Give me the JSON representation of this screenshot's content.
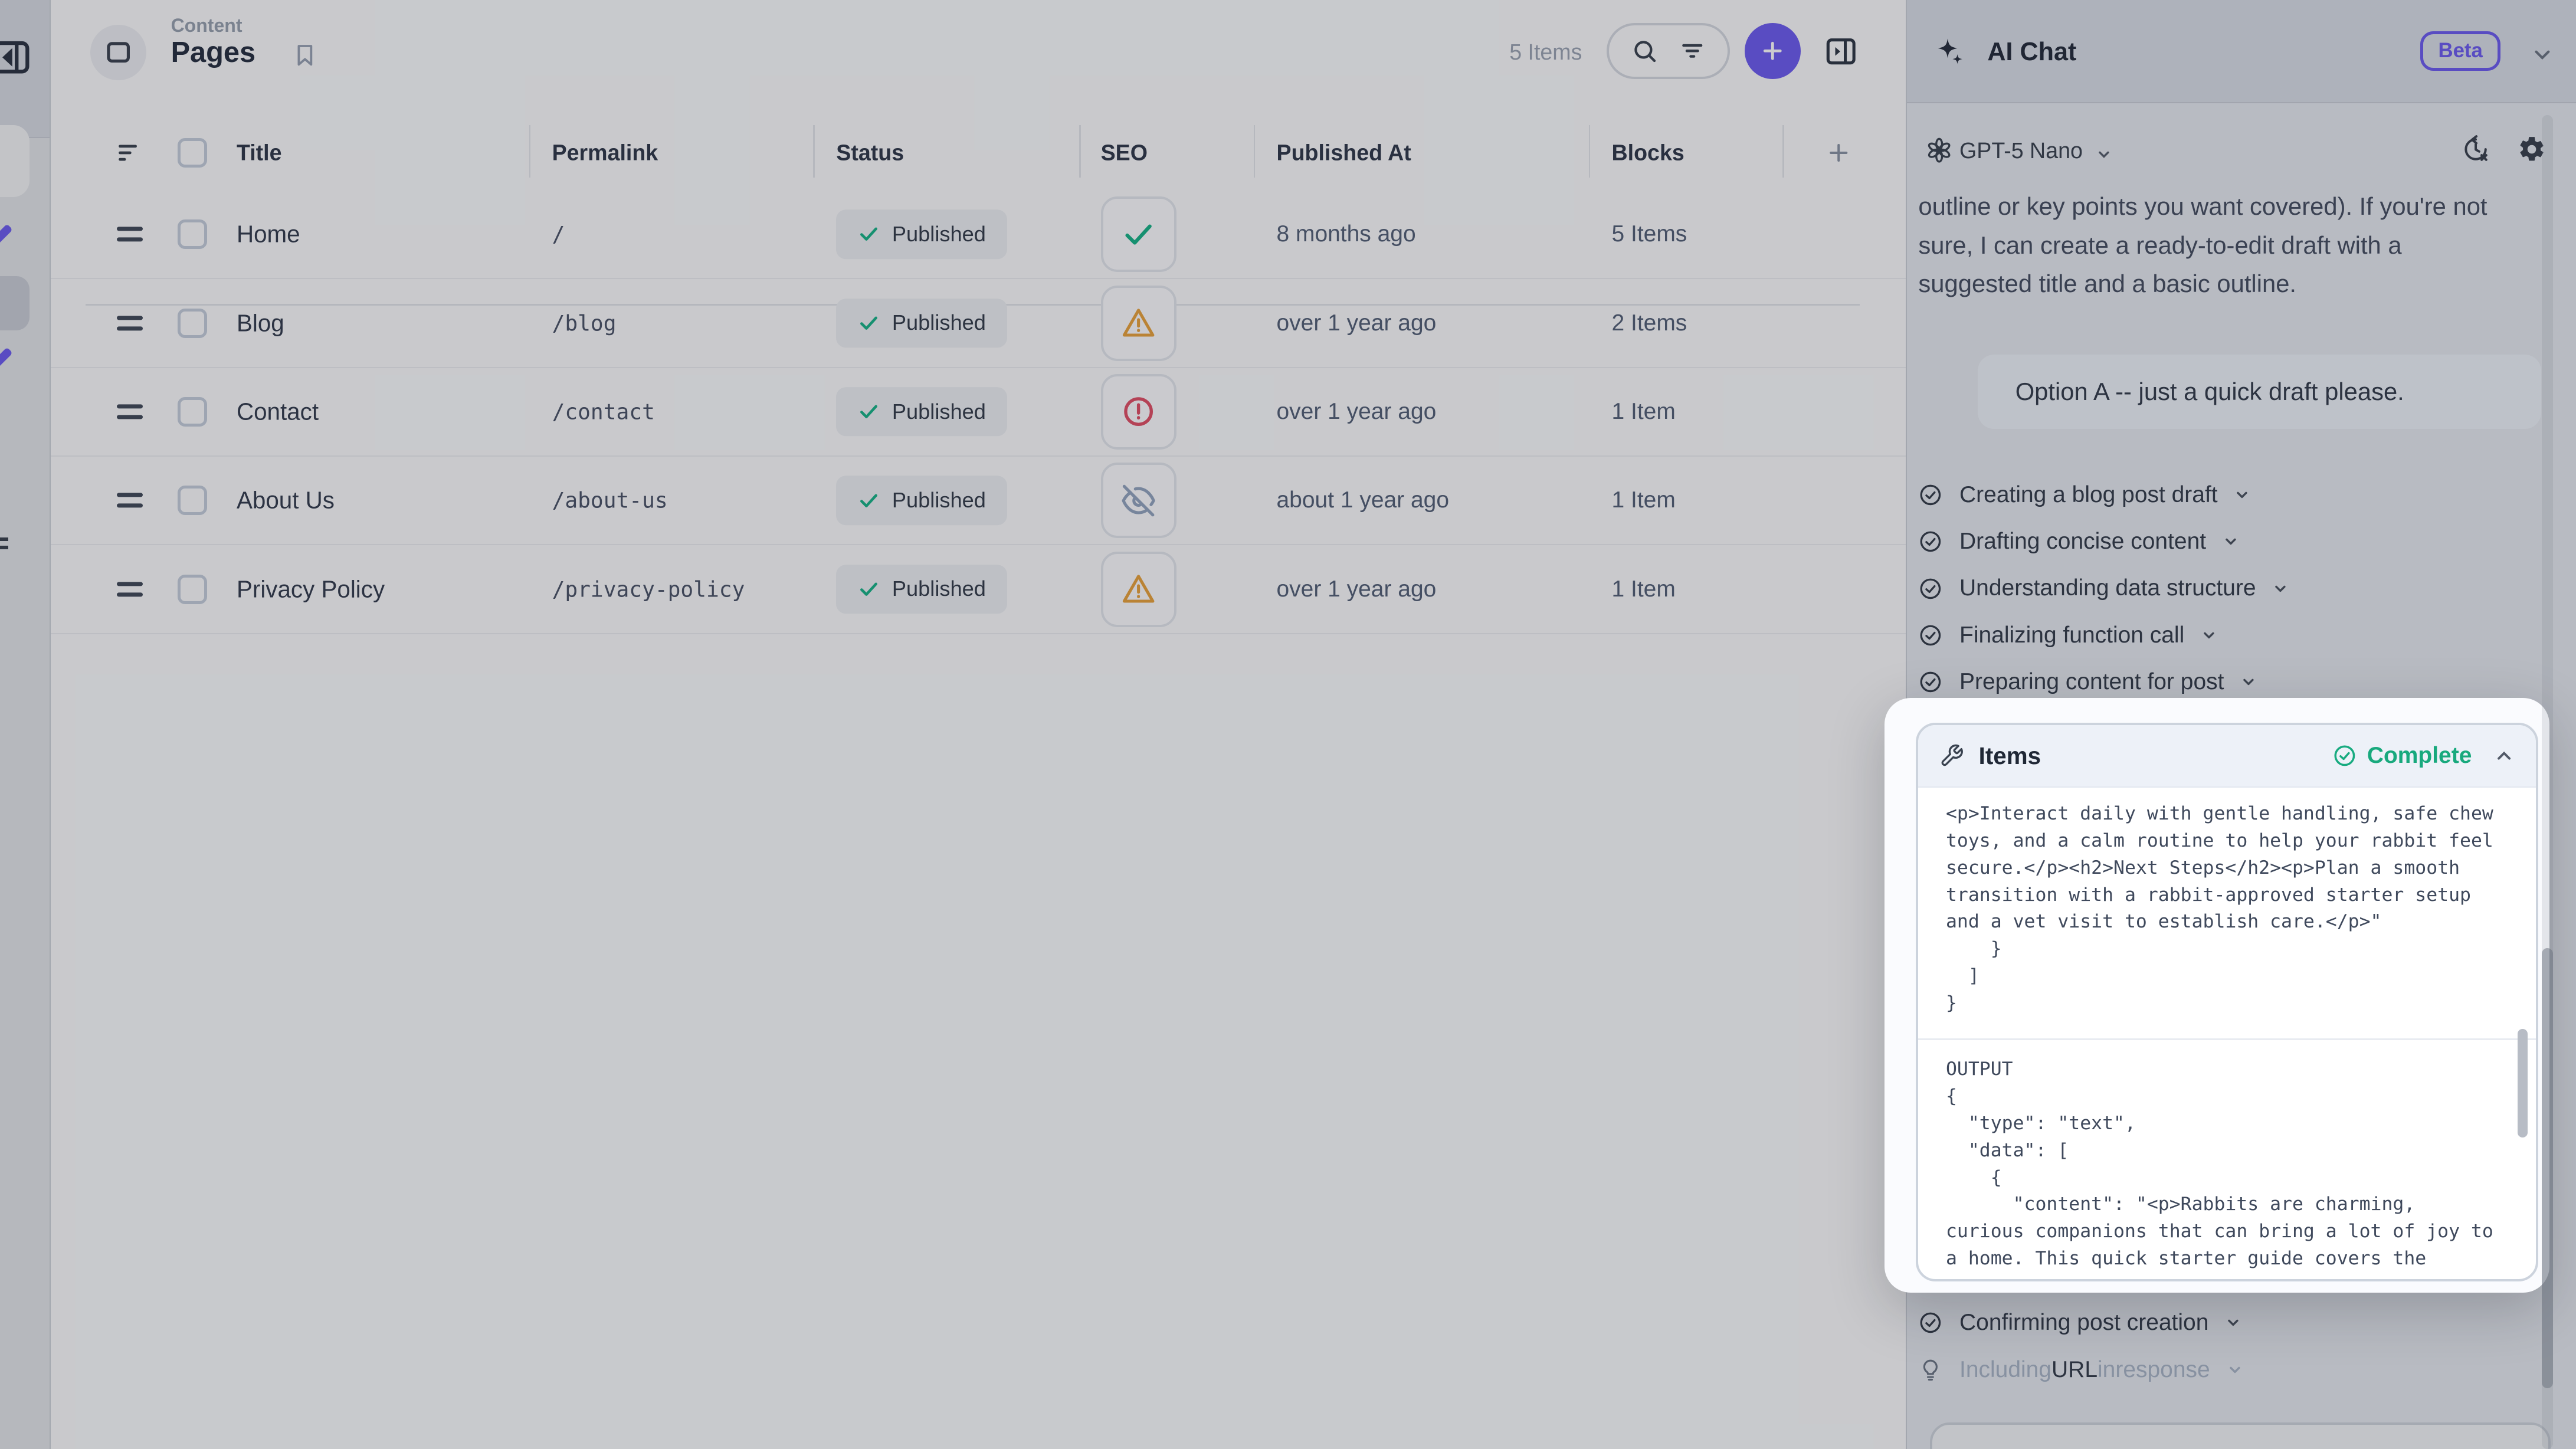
{
  "header": {
    "eyebrow": "Content",
    "title": "Pages",
    "items_count": "5 Items"
  },
  "table": {
    "columns": [
      "Title",
      "Permalink",
      "Status",
      "SEO",
      "Published At",
      "Blocks"
    ],
    "rows": [
      {
        "title": "Home",
        "permalink": "/",
        "status": "Published",
        "seo": "check",
        "published_at": "8 months ago",
        "blocks": "5 Items"
      },
      {
        "title": "Blog",
        "permalink": "/blog",
        "status": "Published",
        "seo": "warning",
        "published_at": "over 1 year ago",
        "blocks": "2 Items"
      },
      {
        "title": "Contact",
        "permalink": "/contact",
        "status": "Published",
        "seo": "error",
        "published_at": "over 1 year ago",
        "blocks": "1 Item"
      },
      {
        "title": "About Us",
        "permalink": "/about-us",
        "status": "Published",
        "seo": "hidden",
        "published_at": "about 1 year ago",
        "blocks": "1 Item"
      },
      {
        "title": "Privacy Policy",
        "permalink": "/privacy-policy",
        "status": "Published",
        "seo": "warning",
        "published_at": "over 1 year ago",
        "blocks": "1 Item"
      }
    ]
  },
  "ai_chat": {
    "title": "AI Chat",
    "badge": "Beta",
    "model": "GPT-5 Nano",
    "assistant_message_lines": [
      "outline or key points you want covered). If you're not",
      "sure, I can create a ready-to-edit draft with a",
      "suggested title and a basic outline."
    ],
    "user_message": "Option A -- just a quick draft please.",
    "steps": [
      "Creating a blog post draft",
      "Drafting concise content",
      "Understanding data structure",
      "Finalizing function call",
      "Preparing content for post"
    ],
    "tool_card": {
      "title": "Items",
      "status": "Complete",
      "input_lines": [
        "<p>Interact daily with gentle handling, safe chew",
        "toys, and a calm routine to help your rabbit feel",
        "secure.</p><h2>Next Steps</h2><p>Plan a smooth",
        "transition with a rabbit-approved starter setup",
        "and a vet visit to establish care.</p>\"",
        "    }",
        "  ]",
        "}"
      ],
      "output_label": "OUTPUT",
      "output_lines": [
        "{",
        "  \"type\": \"text\",",
        "  \"data\": [",
        "    {",
        "      \"content\": \"<p>Rabbits are charming,",
        "curious companions that can bring a lot of joy to",
        "a home. This quick starter guide covers the"
      ]
    },
    "post_steps": [
      {
        "icon": "check-circle",
        "parts": [
          {
            "text": "Confirming post creation",
            "muted": false
          }
        ]
      },
      {
        "icon": "bulb",
        "parts": [
          {
            "text": "Including ",
            "muted": true
          },
          {
            "text": "URL",
            "muted": false
          },
          {
            "text": " in ",
            "muted": true
          },
          {
            "text": "response",
            "muted": true
          }
        ]
      }
    ]
  },
  "colors": {
    "accent": "#6c5cf0",
    "success": "#16b287",
    "warning": "#e8a23b",
    "danger": "#e04f66",
    "hidden_icon": "#93a5bf"
  }
}
